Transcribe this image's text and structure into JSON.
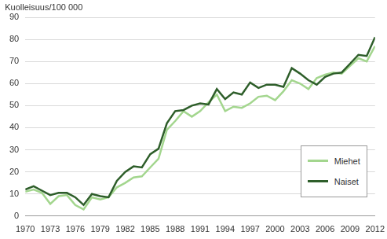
{
  "chart_data": {
    "type": "line",
    "y_label": "Kuolleisuus/100 000",
    "x": [
      1970,
      1971,
      1972,
      1973,
      1974,
      1975,
      1976,
      1977,
      1978,
      1979,
      1980,
      1981,
      1982,
      1983,
      1984,
      1985,
      1986,
      1987,
      1988,
      1989,
      1990,
      1991,
      1992,
      1993,
      1994,
      1995,
      1996,
      1997,
      1998,
      1999,
      2000,
      2001,
      2002,
      2003,
      2004,
      2005,
      2006,
      2007,
      2008,
      2009,
      2010,
      2011,
      2012
    ],
    "series": [
      {
        "name": "Miehet",
        "color": "#a3d68e",
        "values": [
          11,
          12,
          10.5,
          5.5,
          9,
          9.5,
          5,
          3,
          8.5,
          7.5,
          8.5,
          13,
          15,
          17.5,
          18,
          22,
          26,
          39,
          43,
          47.5,
          45,
          47.5,
          51.5,
          55,
          47.5,
          49.5,
          49,
          51,
          54,
          54.5,
          52.5,
          56.5,
          61.5,
          60,
          57.5,
          62.5,
          64,
          65,
          64.5,
          68,
          71.5,
          70,
          77
        ]
      },
      {
        "name": "Naiset",
        "color": "#2e5e2a",
        "values": [
          12,
          13.5,
          11.5,
          9.5,
          10.5,
          10.5,
          8.5,
          5,
          10,
          9,
          8.5,
          16,
          20,
          22.5,
          22,
          28,
          30.5,
          42,
          47.5,
          48,
          50,
          51,
          50.5,
          57.5,
          53,
          56,
          55,
          60.5,
          58,
          59.5,
          59.5,
          58.5,
          67,
          64.5,
          61.5,
          59.5,
          63,
          64.5,
          65,
          69,
          73,
          72.5,
          81
        ]
      }
    ],
    "xlim": [
      1970,
      2012
    ],
    "xticks": [
      1970,
      1973,
      1976,
      1979,
      1982,
      1985,
      1988,
      1991,
      1994,
      1997,
      2000,
      2003,
      2006,
      2009,
      2012
    ],
    "ylim": [
      0,
      90
    ],
    "yticks": [
      0,
      10,
      20,
      30,
      40,
      50,
      60,
      70,
      80,
      90
    ],
    "grid": true,
    "legend": "lower right"
  }
}
